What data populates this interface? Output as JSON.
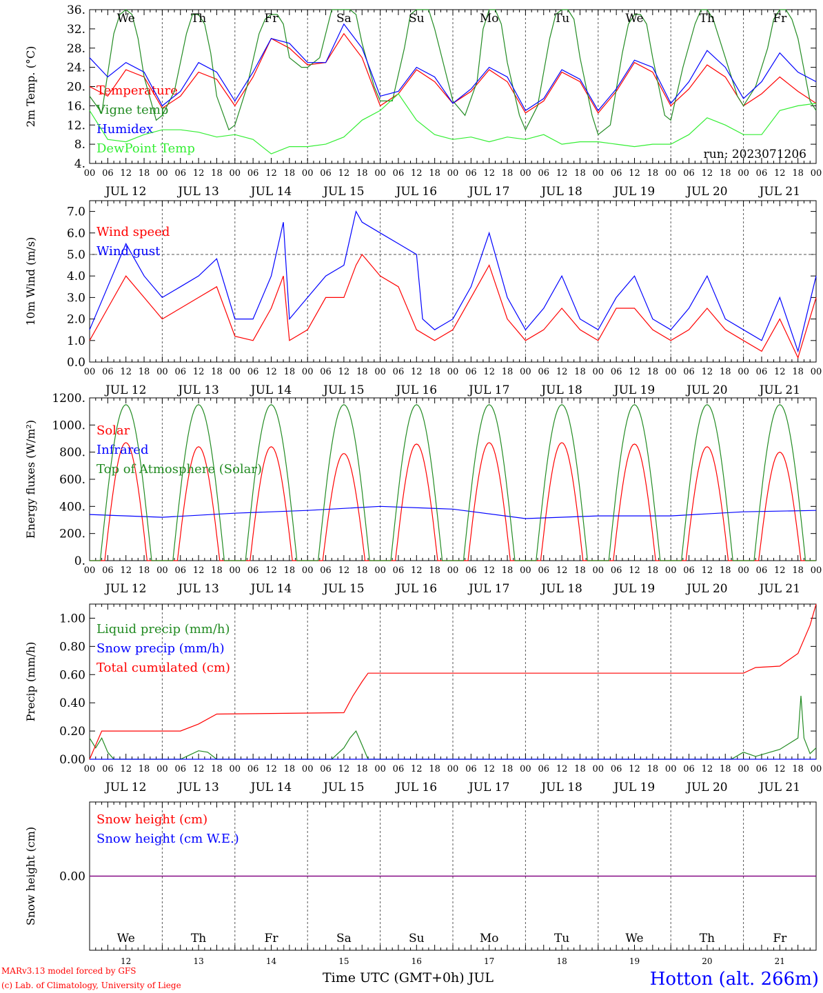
{
  "station": "Hotton (alt. 266m)",
  "run": "run: 2023071206",
  "credit_1": "MARv3.13 model forced by GFS",
  "credit_2": "(c) Lab. of Climatology, University of Liege",
  "x_title": "Time UTC (GMT+0h) JUL",
  "hour_ticks": [
    "00",
    "06",
    "12",
    "18"
  ],
  "days": [
    {
      "date": "JUL 12",
      "abbr": "We",
      "num": "12",
      "weekend": false
    },
    {
      "date": "JUL 13",
      "abbr": "Th",
      "num": "13",
      "weekend": false
    },
    {
      "date": "JUL 14",
      "abbr": "Fr",
      "num": "14",
      "weekend": false
    },
    {
      "date": "JUL 15",
      "abbr": "Sa",
      "num": "15",
      "weekend": true
    },
    {
      "date": "JUL 16",
      "abbr": "Su",
      "num": "16",
      "weekend": true
    },
    {
      "date": "JUL 17",
      "abbr": "Mo",
      "num": "17",
      "weekend": false
    },
    {
      "date": "JUL 18",
      "abbr": "Tu",
      "num": "18",
      "weekend": false
    },
    {
      "date": "JUL 19",
      "abbr": "We",
      "num": "19",
      "weekend": false
    },
    {
      "date": "JUL 20",
      "abbr": "Th",
      "num": "20",
      "weekend": false
    },
    {
      "date": "JUL 21",
      "abbr": "Fr",
      "num": "21",
      "weekend": false
    }
  ],
  "colors": {
    "red": "#ff0000",
    "green": "#228b22",
    "blue": "#0000ff",
    "lightgreen": "#33ee33",
    "purple": "#800080",
    "weekend": "#ff0000"
  },
  "chart_data": [
    {
      "type": "line",
      "ylabel": "2m Temp. (°C)",
      "ylim": [
        4,
        36
      ],
      "yticks": [
        "4.",
        "8.",
        "12.",
        "16.",
        "20.",
        "24.",
        "28.",
        "32.",
        "36."
      ],
      "x_unit": "hours since 2023-07-12 00 UTC",
      "series": [
        {
          "name": "Temperature",
          "color": "red",
          "x": [
            0,
            6,
            12,
            18,
            24,
            30,
            36,
            42,
            48,
            54,
            60,
            66,
            72,
            78,
            84,
            90,
            96,
            102,
            108,
            114,
            120,
            126,
            132,
            138,
            144,
            150,
            156,
            162,
            168,
            174,
            180,
            186,
            192,
            198,
            204,
            210,
            216,
            222,
            228,
            234,
            240
          ],
          "y": [
            20,
            18,
            23.5,
            22,
            15.5,
            18,
            23,
            21.5,
            16,
            22,
            30,
            28,
            24.5,
            25,
            31,
            26,
            16,
            18.5,
            23.5,
            21,
            16.5,
            19,
            23.5,
            21,
            14.5,
            17,
            23,
            21,
            14.5,
            19,
            25,
            23,
            16,
            19.5,
            24.5,
            22,
            16,
            18.5,
            22,
            19,
            16.5
          ]
        },
        {
          "name": "Vigne temp",
          "color": "green",
          "x": [
            0,
            4,
            8,
            10,
            12,
            14,
            16,
            18,
            22,
            24,
            28,
            32,
            34,
            36,
            38,
            40,
            42,
            46,
            48,
            52,
            56,
            58,
            60,
            62,
            64,
            66,
            70,
            72,
            76,
            80,
            82,
            84,
            86,
            88,
            90,
            94,
            96,
            100,
            104,
            106,
            108,
            110,
            112,
            114,
            118,
            120,
            124,
            128,
            130,
            132,
            134,
            136,
            138,
            142,
            144,
            148,
            152,
            154,
            156,
            158,
            160,
            162,
            166,
            168,
            172,
            176,
            178,
            180,
            182,
            184,
            186,
            190,
            192,
            196,
            200,
            202,
            204,
            206,
            208,
            210,
            214,
            216,
            220,
            224,
            226,
            228,
            230,
            232,
            234,
            238,
            240
          ],
          "y": [
            18,
            14.5,
            31,
            35,
            36,
            35,
            30,
            22,
            13,
            14,
            19,
            31,
            35,
            35,
            33,
            27,
            18,
            11,
            12,
            20,
            31,
            34,
            35,
            35,
            33,
            26,
            24,
            24,
            26,
            36,
            36,
            36,
            36,
            35,
            29,
            20,
            17,
            17,
            28,
            35,
            36,
            36,
            36,
            32,
            22,
            17,
            14,
            21,
            32,
            36,
            36,
            33,
            25,
            14,
            11,
            16,
            30,
            35,
            36,
            36,
            34,
            26,
            14,
            10,
            12,
            27,
            33,
            35,
            35,
            33,
            26,
            14,
            13,
            24,
            33,
            36,
            36,
            34,
            30,
            26,
            18,
            16,
            20,
            28,
            34,
            36,
            36,
            34,
            30,
            17,
            15
          ]
        },
        {
          "name": "Humidex",
          "color": "blue",
          "x": [
            0,
            6,
            12,
            18,
            24,
            30,
            36,
            42,
            48,
            54,
            60,
            66,
            72,
            78,
            84,
            90,
            96,
            102,
            108,
            114,
            120,
            126,
            132,
            138,
            144,
            150,
            156,
            162,
            168,
            174,
            180,
            186,
            192,
            198,
            204,
            210,
            216,
            222,
            228,
            234,
            240
          ],
          "y": [
            26,
            22,
            25,
            23,
            16,
            19,
            25,
            23,
            17,
            23,
            30,
            29,
            25,
            25,
            33,
            28,
            18,
            19,
            24,
            22,
            16.5,
            19.5,
            24,
            22,
            15,
            17.5,
            23.5,
            21.5,
            15,
            19.5,
            25.5,
            24,
            16.5,
            21,
            27.5,
            24,
            17.5,
            21,
            27,
            23,
            21
          ]
        },
        {
          "name": "DewPoint Temp",
          "color": "lightgreen",
          "x": [
            0,
            6,
            12,
            18,
            24,
            30,
            36,
            42,
            48,
            54,
            60,
            66,
            72,
            78,
            84,
            90,
            96,
            102,
            108,
            114,
            120,
            126,
            132,
            138,
            144,
            150,
            156,
            162,
            168,
            174,
            180,
            186,
            192,
            198,
            204,
            210,
            216,
            222,
            228,
            234,
            240
          ],
          "y": [
            15,
            9,
            8.5,
            10,
            11,
            11,
            10.5,
            9.5,
            10,
            9,
            6,
            7.5,
            7.5,
            8,
            9.5,
            13,
            15,
            18.5,
            13,
            10,
            9,
            9.5,
            8.5,
            9.5,
            9,
            10,
            8,
            8.5,
            8.5,
            8,
            7.5,
            8,
            8,
            10,
            13.5,
            12,
            10,
            10,
            15,
            16,
            16.5
          ]
        }
      ]
    },
    {
      "type": "line",
      "ylabel": "10m Wind (m/s)",
      "ylim": [
        0,
        7.5
      ],
      "yticks": [
        "0.0",
        "1.0",
        "2.0",
        "3.0",
        "4.0",
        "5.0",
        "6.0",
        "7.0"
      ],
      "reference_line": 5.0,
      "series": [
        {
          "name": "Wind speed",
          "color": "red",
          "x": [
            0,
            6,
            12,
            18,
            24,
            30,
            36,
            42,
            48,
            54,
            60,
            64,
            66,
            72,
            78,
            84,
            88,
            90,
            96,
            102,
            108,
            114,
            120,
            126,
            132,
            138,
            144,
            150,
            156,
            162,
            168,
            174,
            180,
            186,
            192,
            198,
            204,
            210,
            216,
            222,
            228,
            234,
            240
          ],
          "y": [
            1.0,
            2.5,
            4.0,
            3.0,
            2.0,
            2.5,
            3.0,
            3.5,
            1.2,
            1.0,
            2.5,
            4.0,
            1.0,
            1.5,
            3.0,
            3.0,
            4.5,
            5.0,
            4.0,
            3.5,
            1.5,
            1.0,
            1.5,
            3.0,
            4.5,
            2.0,
            1.0,
            1.5,
            2.5,
            1.5,
            1.0,
            2.5,
            2.5,
            1.5,
            1.0,
            1.5,
            2.5,
            1.5,
            1.0,
            0.5,
            2.0,
            0.2,
            3.0
          ]
        },
        {
          "name": "Wind gust",
          "color": "blue",
          "x": [
            0,
            6,
            12,
            18,
            24,
            30,
            36,
            42,
            48,
            54,
            60,
            64,
            66,
            72,
            78,
            84,
            88,
            90,
            96,
            102,
            108,
            110,
            114,
            120,
            126,
            132,
            138,
            144,
            150,
            156,
            162,
            168,
            174,
            180,
            186,
            192,
            198,
            204,
            210,
            216,
            222,
            228,
            234,
            240
          ],
          "y": [
            1.5,
            3.5,
            5.5,
            4.0,
            3.0,
            3.5,
            4.0,
            4.8,
            2.0,
            2.0,
            4.0,
            6.5,
            2.0,
            3.0,
            4.0,
            4.5,
            7.0,
            6.5,
            6.0,
            5.5,
            5.0,
            2.0,
            1.5,
            2.0,
            3.5,
            6.0,
            3.0,
            1.5,
            2.5,
            4.0,
            2.0,
            1.5,
            3.0,
            4.0,
            2.0,
            1.5,
            2.5,
            4.0,
            2.0,
            1.5,
            1.0,
            3.0,
            0.5,
            4.0
          ]
        }
      ]
    },
    {
      "type": "line",
      "ylabel": "Energy fluxes (W/m²)",
      "ylim": [
        0,
        1200
      ],
      "yticks": [
        "0.",
        "200.",
        "400.",
        "600.",
        "800.",
        "1000.",
        "1200."
      ],
      "series": [
        {
          "name": "Solar",
          "color": "red",
          "x": [
            0,
            12,
            18,
            24,
            34,
            38,
            48,
            58,
            64,
            72,
            81,
            88,
            96,
            106,
            114,
            120,
            127,
            134,
            144,
            155,
            168,
            178,
            192,
            202,
            216,
            226
          ],
          "peaks": [
            870,
            840,
            840,
            790,
            860,
            870,
            870,
            860,
            840,
            800
          ],
          "y": [
            0,
            870,
            0,
            0,
            840,
            0,
            0,
            840,
            0,
            0,
            790,
            0,
            0,
            860,
            0,
            0,
            870,
            0,
            0,
            870,
            0,
            0,
            860,
            0,
            0,
            840
          ]
        },
        {
          "name": "Infrared",
          "color": "blue",
          "x": [
            0,
            24,
            48,
            72,
            96,
            120,
            144,
            168,
            192,
            216,
            240
          ],
          "y": [
            340,
            320,
            350,
            370,
            400,
            380,
            310,
            330,
            330,
            360,
            370
          ]
        },
        {
          "name": "Top of Atmosphere (Solar)",
          "color": "green",
          "peak_each_day": 1150,
          "sunrise_hour": 3.5,
          "sunset_hour": 20.5
        }
      ]
    },
    {
      "type": "line",
      "ylabel": "Precip (mm/h)",
      "ylim": [
        0,
        1.1
      ],
      "yticks": [
        "0.00",
        "0.20",
        "0.40",
        "0.60",
        "0.80",
        "1.00"
      ],
      "series": [
        {
          "name": "Liquid precip (mm/h)",
          "color": "green",
          "x": [
            0,
            2,
            4,
            6,
            8,
            30,
            33,
            36,
            39,
            42,
            80,
            84,
            86,
            88,
            90,
            92,
            212,
            216,
            220,
            228,
            234,
            235,
            236,
            238,
            240
          ],
          "y": [
            0.15,
            0.08,
            0.15,
            0.05,
            0,
            0,
            0.03,
            0.06,
            0.05,
            0,
            0,
            0.08,
            0.15,
            0.2,
            0.1,
            0,
            0,
            0.05,
            0.02,
            0.07,
            0.15,
            0.45,
            0.15,
            0.04,
            0.08
          ]
        },
        {
          "name": "Snow precip (mm/h)",
          "color": "blue",
          "x": [
            0,
            240
          ],
          "y": [
            0,
            0
          ]
        },
        {
          "name": "Total cumulated (cm)",
          "color": "red",
          "x": [
            0,
            4,
            30,
            36,
            42,
            84,
            87,
            90,
            92,
            216,
            220,
            228,
            234,
            238,
            240
          ],
          "y": [
            0,
            0.2,
            0.2,
            0.25,
            0.32,
            0.33,
            0.45,
            0.55,
            0.61,
            0.61,
            0.65,
            0.66,
            0.75,
            0.95,
            1.1
          ]
        }
      ]
    },
    {
      "type": "line",
      "ylabel": "Snow height (cm)",
      "yticks": [
        "0.00"
      ],
      "series": [
        {
          "name": "Snow height (cm)",
          "color": "red",
          "x": [
            0,
            240
          ],
          "y": [
            0,
            0
          ]
        },
        {
          "name": "Snow height (cm W.E.)",
          "color": "blue",
          "x": [
            0,
            240
          ],
          "y": [
            0,
            0
          ]
        }
      ]
    }
  ]
}
